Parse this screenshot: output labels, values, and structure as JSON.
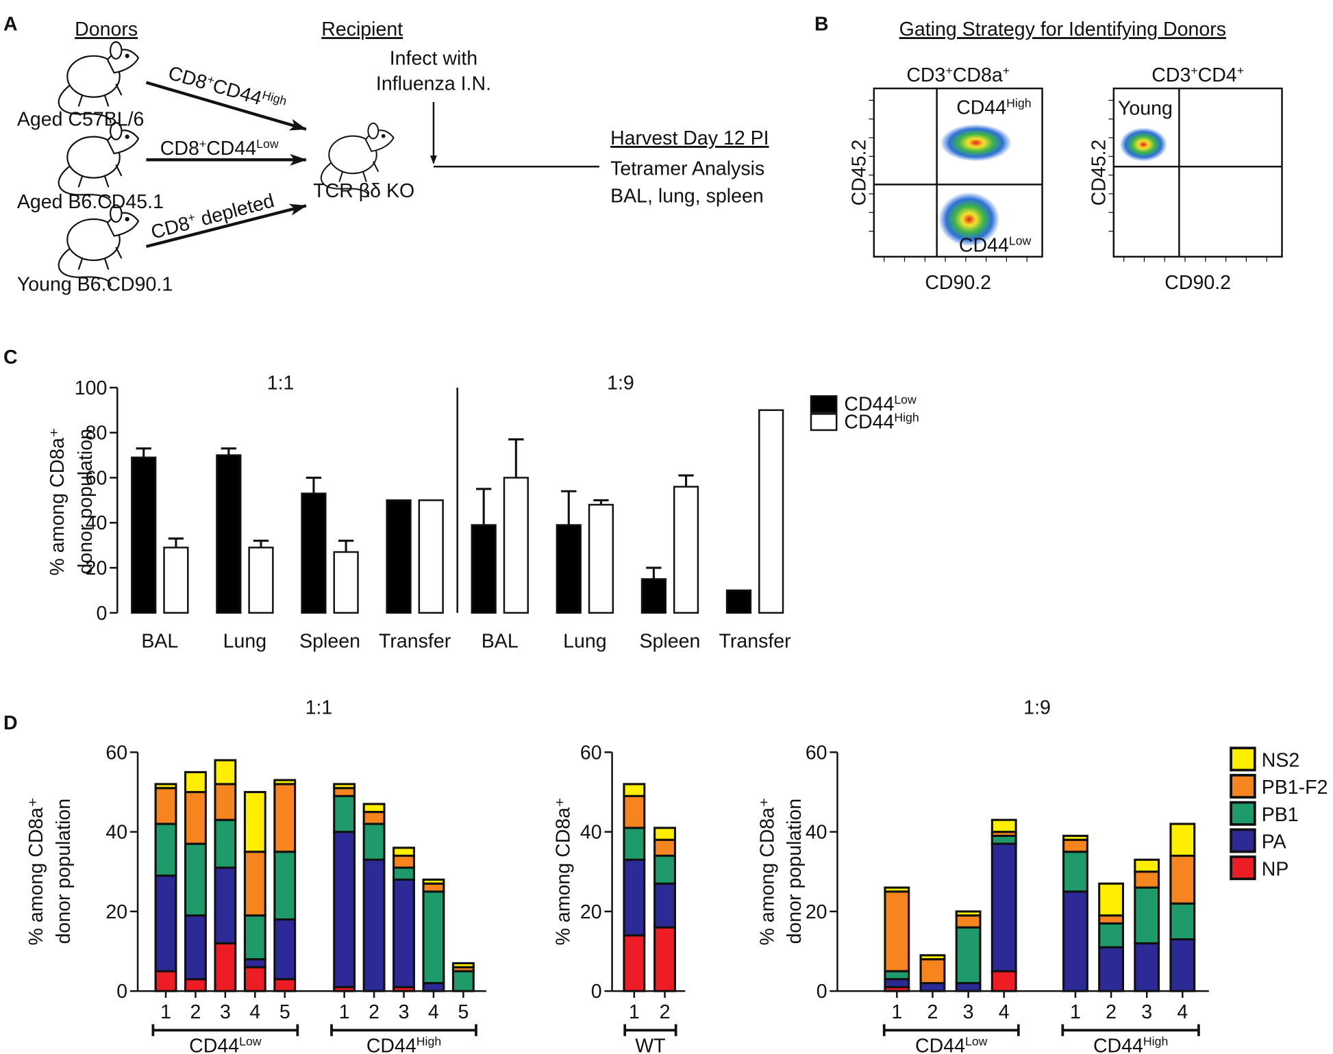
{
  "panel_labels": [
    "A",
    "B",
    "C",
    "D"
  ],
  "diagram": {
    "donors_heading": "Donors",
    "recipient_heading": "Recipient",
    "donors": [
      "Aged C57BL/6",
      "Aged B6.CD45.1",
      "Young B6.CD90.1"
    ],
    "transfers": [
      [
        "CD8",
        "+",
        "CD44",
        "High"
      ],
      [
        "CD8",
        "+",
        "CD44",
        "Low"
      ],
      [
        "CD8",
        "+",
        " depleted"
      ]
    ],
    "recipient": "TCR βδ KO",
    "infection": [
      "Infect with",
      "Influenza I.N."
    ],
    "harvest": [
      "Harvest Day 12 PI",
      "Tetramer Analysis",
      "BAL, lung, spleen"
    ]
  },
  "gating": {
    "title": "Gating Strategy for Identifying Donors",
    "plots": [
      {
        "title": [
          "CD3",
          "+",
          "CD8a",
          "+"
        ],
        "xlabel": "CD90.2",
        "ylabel": "CD45.2",
        "gates": [
          [
            "CD44",
            "High"
          ],
          [
            "CD44",
            "Low"
          ]
        ]
      },
      {
        "title": [
          "CD3",
          "+",
          "CD4",
          "+"
        ],
        "xlabel": "CD90.2",
        "ylabel": "CD45.2",
        "gates": [
          [
            "Young"
          ]
        ]
      }
    ]
  },
  "chart_data": [
    {
      "type": "grouped-bar",
      "ylabel": [
        "% among CD8a⁺",
        "donor population"
      ],
      "ylim": [
        0,
        100
      ],
      "yticks": [
        0,
        20,
        40,
        60,
        80,
        100
      ],
      "legend": "right",
      "series": [
        {
          "name": [
            "CD44",
            "Low"
          ],
          "color": "#000000"
        },
        {
          "name": [
            "CD44",
            "High"
          ],
          "color": "#ffffff"
        }
      ],
      "panels": [
        {
          "title": "1:1",
          "categories": [
            "BAL",
            "Lung",
            "Spleen",
            "Transfer"
          ],
          "series": [
            {
              "values": [
                69,
                70,
                53,
                50
              ],
              "errors": [
                4,
                3,
                7,
                null
              ]
            },
            {
              "values": [
                29,
                29,
                27,
                50
              ],
              "errors": [
                4,
                3,
                5,
                null
              ]
            }
          ]
        },
        {
          "title": "1:9",
          "categories": [
            "BAL",
            "Lung",
            "Spleen",
            "Transfer"
          ],
          "series": [
            {
              "values": [
                39,
                39,
                15,
                10
              ],
              "errors": [
                16,
                15,
                5,
                null
              ]
            },
            {
              "values": [
                60,
                48,
                56,
                90
              ],
              "errors": [
                17,
                2,
                5,
                null
              ]
            }
          ]
        }
      ]
    },
    {
      "type": "stacked-bar",
      "title": "1:1",
      "ylabel": [
        "% among CD8a⁺",
        "donor population"
      ],
      "ylim": [
        0,
        60
      ],
      "yticks": [
        0,
        20,
        40,
        60
      ],
      "groups": [
        {
          "label": [
            "CD44",
            "Low"
          ],
          "categories": [
            "1",
            "2",
            "3",
            "4",
            "5"
          ]
        },
        {
          "label": [
            "CD44",
            "High"
          ],
          "categories": [
            "1",
            "2",
            "3",
            "4",
            "5"
          ]
        }
      ],
      "series": [
        {
          "color": "#ee1c24",
          "values": [
            5,
            3,
            12,
            6,
            3,
            1,
            0,
            1,
            0,
            0
          ]
        },
        {
          "color": "#2b2a96",
          "values": [
            24,
            16,
            19,
            2,
            15,
            39,
            33,
            27,
            2,
            0
          ]
        },
        {
          "color": "#1f9a6a",
          "values": [
            13,
            18,
            12,
            11,
            17,
            9,
            9,
            3,
            23,
            5
          ]
        },
        {
          "color": "#f7851f",
          "values": [
            9,
            13,
            9,
            16,
            17,
            2,
            3,
            3,
            2,
            1
          ]
        },
        {
          "color": "#ffee00",
          "values": [
            1,
            5,
            6,
            15,
            1,
            1,
            2,
            2,
            1,
            1
          ]
        }
      ]
    },
    {
      "type": "stacked-bar",
      "ylabel": [
        "% among CD8a⁺"
      ],
      "ylim": [
        0,
        60
      ],
      "yticks": [
        0,
        20,
        40,
        60
      ],
      "groups": [
        {
          "label": [
            "WT"
          ],
          "categories": [
            "1",
            "2"
          ]
        }
      ],
      "series": [
        {
          "color": "#ee1c24",
          "values": [
            14,
            16
          ]
        },
        {
          "color": "#2b2a96",
          "values": [
            19,
            11
          ]
        },
        {
          "color": "#1f9a6a",
          "values": [
            8,
            7
          ]
        },
        {
          "color": "#f7851f",
          "values": [
            8,
            4
          ]
        },
        {
          "color": "#ffee00",
          "values": [
            3,
            3
          ]
        }
      ]
    },
    {
      "type": "stacked-bar",
      "title": "1:9",
      "ylabel": [
        "% among CD8a⁺",
        "donor population"
      ],
      "ylim": [
        0,
        60
      ],
      "yticks": [
        0,
        20,
        40,
        60
      ],
      "legend": "right",
      "groups": [
        {
          "label": [
            "CD44",
            "Low"
          ],
          "categories": [
            "1",
            "2",
            "3",
            "4"
          ]
        },
        {
          "label": [
            "CD44",
            "High"
          ],
          "categories": [
            "1",
            "2",
            "3",
            "4"
          ]
        }
      ],
      "series": [
        {
          "name": "NP",
          "color": "#ee1c24",
          "values": [
            1,
            0,
            0,
            5,
            0,
            0,
            0,
            0
          ]
        },
        {
          "name": "PA",
          "color": "#2b2a96",
          "values": [
            2,
            2,
            2,
            32,
            25,
            11,
            12,
            13
          ]
        },
        {
          "name": "PB1",
          "color": "#1f9a6a",
          "values": [
            2,
            0,
            14,
            2,
            10,
            6,
            14,
            9
          ]
        },
        {
          "name": "PB1-F2",
          "color": "#f7851f",
          "values": [
            20,
            6,
            3,
            1,
            3,
            2,
            4,
            12
          ]
        },
        {
          "name": "NS2",
          "color": "#ffee00",
          "values": [
            1,
            1,
            1,
            3,
            1,
            8,
            3,
            8
          ]
        }
      ]
    }
  ]
}
